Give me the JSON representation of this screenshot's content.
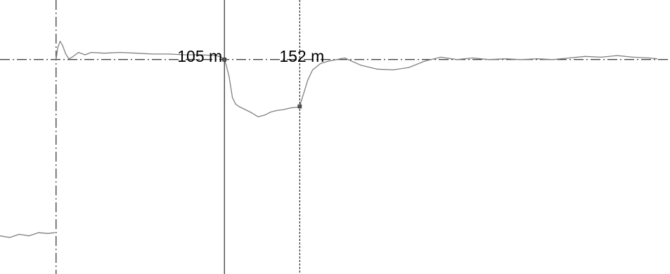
{
  "chart_data": {
    "type": "line",
    "title": "",
    "xlabel": "",
    "ylabel": "",
    "x_unit": "m",
    "grid": false,
    "legend": "none",
    "xlim": [
      -35,
      383
    ],
    "ylim": [
      -27,
      7.5
    ],
    "markers": [
      {
        "label": "105 m",
        "x": 105,
        "style": "solid"
      },
      {
        "label": "152 m",
        "x": 152,
        "style": "dashed"
      }
    ],
    "reference_lines": {
      "baseline_y": 0,
      "left_x": 0
    },
    "series": [
      {
        "color": "#808080",
        "segments": [
          {
            "x": [
              -35,
              -29,
              -23,
              -17,
              -11,
              -5,
              -1
            ],
            "y": [
              -22.2,
              -22.4,
              -22.0,
              -22.2,
              -21.8,
              -21.9,
              -21.8
            ]
          },
          {
            "x": [
              0,
              1,
              2.5,
              4,
              6,
              8,
              10,
              14,
              18,
              22,
              30,
              40,
              50,
              60,
              70,
              80,
              90,
              100,
              103,
              105,
              106,
              108,
              110,
              112,
              114,
              118,
              122,
              126,
              130,
              134,
              138,
              142,
              146,
              150,
              152,
              153,
              155,
              157,
              160,
              165,
              170,
              175,
              180,
              190,
              200,
              210,
              220,
              230,
              240,
              250,
              260,
              270,
              280,
              290,
              300,
              310,
              320,
              330,
              340,
              350,
              360,
              370,
              375
            ],
            "y": [
              0,
              1.5,
              2.3,
              1.8,
              0.7,
              0.1,
              0.3,
              0.9,
              0.6,
              0.9,
              0.8,
              0.9,
              0.8,
              0.7,
              0.7,
              0.6,
              0.6,
              0.5,
              0.3,
              0.0,
              -0.6,
              -2.2,
              -4.8,
              -5.6,
              -5.9,
              -6.3,
              -6.7,
              -7.2,
              -7.0,
              -6.6,
              -6.4,
              -6.3,
              -6.1,
              -6.0,
              -5.9,
              -5.2,
              -3.9,
              -2.6,
              -1.3,
              -0.5,
              -0.2,
              0.0,
              0.2,
              -0.7,
              -1.2,
              -1.3,
              -1.0,
              -0.2,
              0.3,
              0.0,
              0.2,
              0.0,
              0.1,
              0.0,
              0.1,
              0.0,
              0.2,
              0.4,
              0.3,
              0.5,
              0.3,
              0.2,
              0.1
            ]
          }
        ]
      }
    ]
  }
}
